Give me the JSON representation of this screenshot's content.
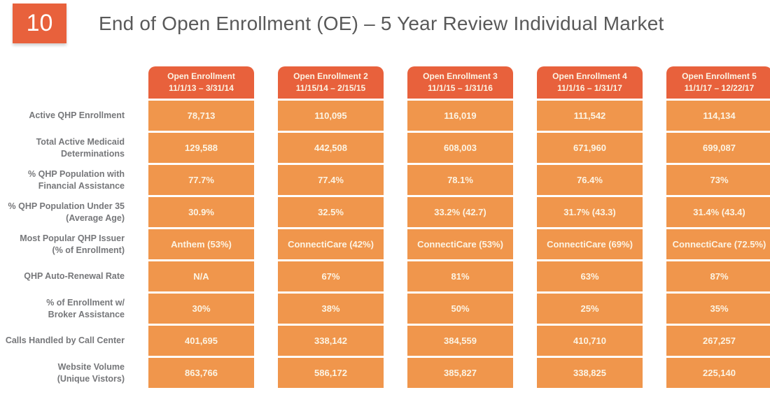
{
  "slide": {
    "page_number": "10",
    "title": "End of Open Enrollment (OE) – 5 Year Review Individual Market"
  },
  "colors": {
    "header_orange": "#E8613C",
    "cell_orange": "#F0964C",
    "label_gray": "#76777A",
    "title_gray": "#595959",
    "cell_text": "#FCF4E4"
  },
  "table": {
    "columns": [
      {
        "title": "Open Enrollment",
        "dates": "11/1/13 – 3/31/14"
      },
      {
        "title": "Open Enrollment 2",
        "dates": "11/15/14 – 2/15/15"
      },
      {
        "title": "Open Enrollment 3",
        "dates": "11/1/15 – 1/31/16"
      },
      {
        "title": "Open Enrollment 4",
        "dates": "11/1/16 – 1/31/17"
      },
      {
        "title": "Open Enrollment 5",
        "dates": "11/1/17 – 12/22/17"
      }
    ],
    "rows": [
      {
        "label": "Active QHP Enrollment",
        "values": [
          "78,713",
          "110,095",
          "116,019",
          "111,542",
          "114,134"
        ]
      },
      {
        "label": "Total Active Medicaid\nDeterminations",
        "values": [
          "129,588",
          "442,508",
          "608,003",
          "671,960",
          "699,087"
        ]
      },
      {
        "label": "% QHP Population with\nFinancial Assistance",
        "values": [
          "77.7%",
          "77.4%",
          "78.1%",
          "76.4%",
          "73%"
        ]
      },
      {
        "label": "% QHP Population Under 35\n(Average Age)",
        "values": [
          "30.9%",
          "32.5%",
          "33.2% (42.7)",
          "31.7% (43.3)",
          "31.4% (43.4)"
        ]
      },
      {
        "label": "Most Popular QHP Issuer\n(% of Enrollment)",
        "values": [
          "Anthem (53%)",
          "ConnectiCare (42%)",
          "ConnectiCare (53%)",
          "ConnectiCare (69%)",
          "ConnectiCare (72.5%)"
        ]
      },
      {
        "label": "QHP Auto-Renewal Rate",
        "values": [
          "N/A",
          "67%",
          "81%",
          "63%",
          "87%"
        ]
      },
      {
        "label": "% of Enrollment w/\nBroker Assistance",
        "values": [
          "30%",
          "38%",
          "50%",
          "25%",
          "35%"
        ]
      },
      {
        "label": "Calls Handled by Call Center",
        "values": [
          "401,695",
          "338,142",
          "384,559",
          "410,710",
          "267,257"
        ]
      },
      {
        "label": "Website Volume\n(Unique Vistors)",
        "values": [
          "863,766",
          "586,172",
          "385,827",
          "338,825",
          "225,140"
        ]
      }
    ]
  }
}
